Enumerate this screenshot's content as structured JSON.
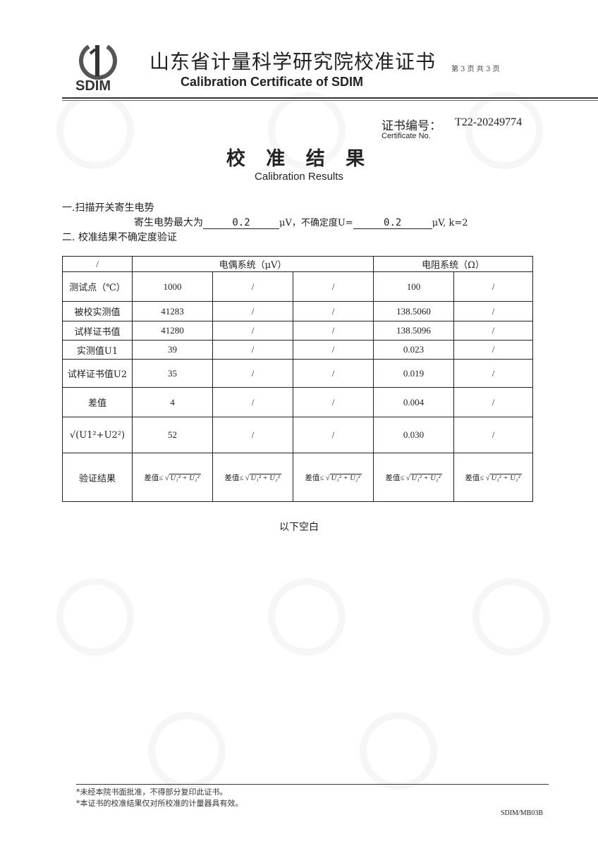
{
  "header": {
    "logo_text": "SDIM",
    "title_cn": "山东省计量科学研究院校准证书",
    "title_en": "Calibration Certificate of SDIM",
    "page_info": "第 3 页 共 3 页"
  },
  "certificate": {
    "label_cn": "证书编号：",
    "label_en": "Certificate No.",
    "number": "T22-20249774"
  },
  "heading": {
    "cn": "校 准 结 果",
    "en": "Calibration Results"
  },
  "section1": {
    "title": "一.扫描开关寄生电势",
    "line_prefix": "寄生电势最大为",
    "value": "0.2",
    "unit1": "μV，不确定度U=",
    "uncertainty": "0.2",
    "unit2": "μV, k=2"
  },
  "section2": {
    "title": "二. 校准结果不确定度验证"
  },
  "table": {
    "corner": "/",
    "group1": "电偶系统（μV）",
    "group2": "电阻系统（Ω）",
    "rows": [
      {
        "label": "测试点（℃）",
        "cells": [
          "1000",
          "/",
          "/",
          "100",
          "/"
        ]
      },
      {
        "label": "被校实测值",
        "cells": [
          "41283",
          "/",
          "/",
          "138.5060",
          "/"
        ]
      },
      {
        "label": "试样证书值",
        "cells": [
          "41280",
          "/",
          "/",
          "138.5096",
          "/"
        ]
      },
      {
        "label": "实测值U1",
        "cells": [
          "39",
          "/",
          "/",
          "0.023",
          "/"
        ]
      },
      {
        "label": "试样证书值U2",
        "cells": [
          "35",
          "/",
          "/",
          "0.019",
          "/"
        ]
      },
      {
        "label": "差值",
        "cells": [
          "4",
          "/",
          "/",
          "0.004",
          "/"
        ]
      },
      {
        "label": "√(U1²+U2²)",
        "cells": [
          "52",
          "/",
          "/",
          "0.030",
          "/"
        ]
      },
      {
        "label": "验证结果",
        "cells": [
          "差值≤",
          "差值≤",
          "差值≤",
          "差值≤",
          "差值≤"
        ]
      }
    ],
    "formula": "U₁² + U₂²"
  },
  "blank_note": "以下空白",
  "footer": {
    "note1": "*未经本院书面批准，不得部分复印此证书。",
    "note2": "*本证书的校准结果仅对所校准的计量器具有效。",
    "code": "SDIM/MB03B"
  }
}
